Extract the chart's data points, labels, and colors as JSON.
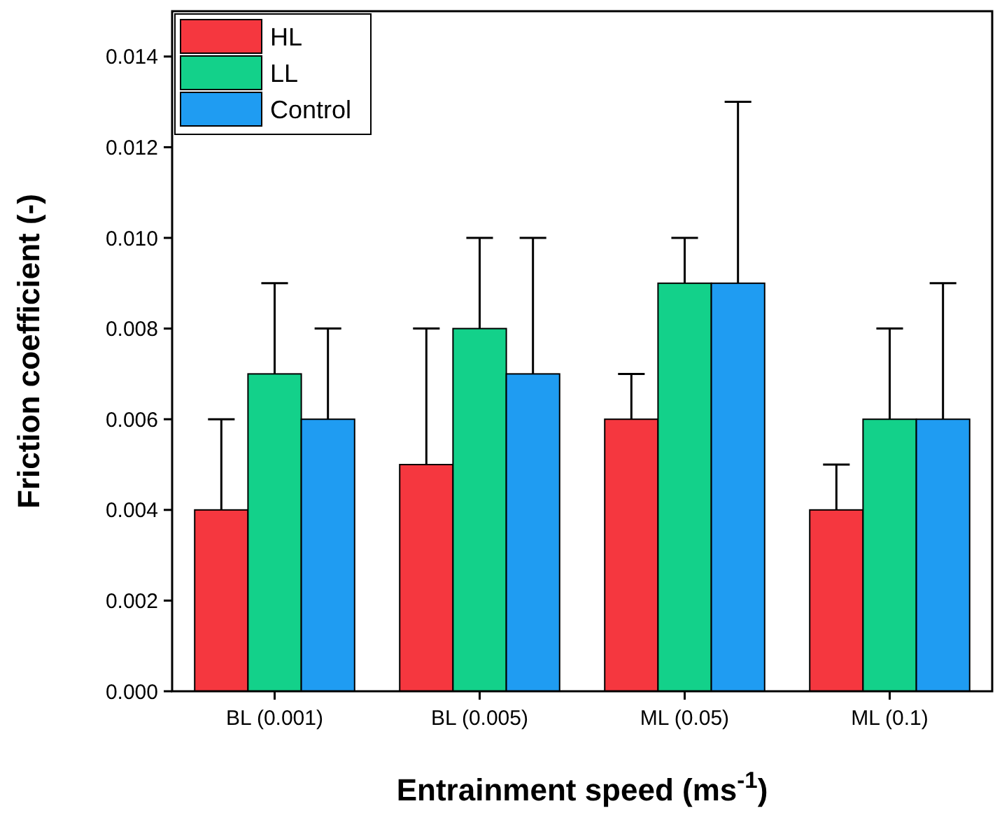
{
  "chart_data": {
    "type": "bar",
    "xlabel": "Entrainment speed (ms$^{-1}$)",
    "ylabel": "Friction coefficient (-)",
    "categories": [
      "BL (0.001)",
      "BL (0.005)",
      "ML (0.05)",
      "ML (0.1)"
    ],
    "series": [
      {
        "name": "HL",
        "color": "#f5373f",
        "values": [
          0.004,
          0.005,
          0.006,
          0.004
        ],
        "errors": [
          [
            0.004,
            0.006
          ],
          [
            0.005,
            0.008
          ],
          [
            0.006,
            0.007
          ],
          [
            0.004,
            0.005
          ]
        ]
      },
      {
        "name": "LL",
        "color": "#13d18a",
        "values": [
          0.007,
          0.008,
          0.009,
          0.006
        ],
        "errors": [
          [
            0.007,
            0.009
          ],
          [
            0.008,
            0.01
          ],
          [
            0.009,
            0.01
          ],
          [
            0.006,
            0.008
          ]
        ]
      },
      {
        "name": "Control",
        "color": "#1f9cf2",
        "values": [
          0.006,
          0.007,
          0.009,
          0.006
        ],
        "errors": [
          [
            0.006,
            0.008
          ],
          [
            0.007,
            0.01
          ],
          [
            0.009,
            0.013
          ],
          [
            0.006,
            0.009
          ]
        ]
      }
    ],
    "ylim": [
      0,
      0.015
    ],
    "yticks": [
      {
        "value": 0,
        "label": "0.000"
      },
      {
        "value": 0.002,
        "label": "0.002"
      },
      {
        "value": 0.004,
        "label": "0.004"
      },
      {
        "value": 0.006,
        "label": "0.006"
      },
      {
        "value": 0.008,
        "label": "0.008"
      },
      {
        "value": 0.01,
        "label": "0.010"
      },
      {
        "value": 0.012,
        "label": "0.012"
      },
      {
        "value": 0.014,
        "label": "0.014"
      }
    ],
    "legend": "top left",
    "grid": false
  }
}
